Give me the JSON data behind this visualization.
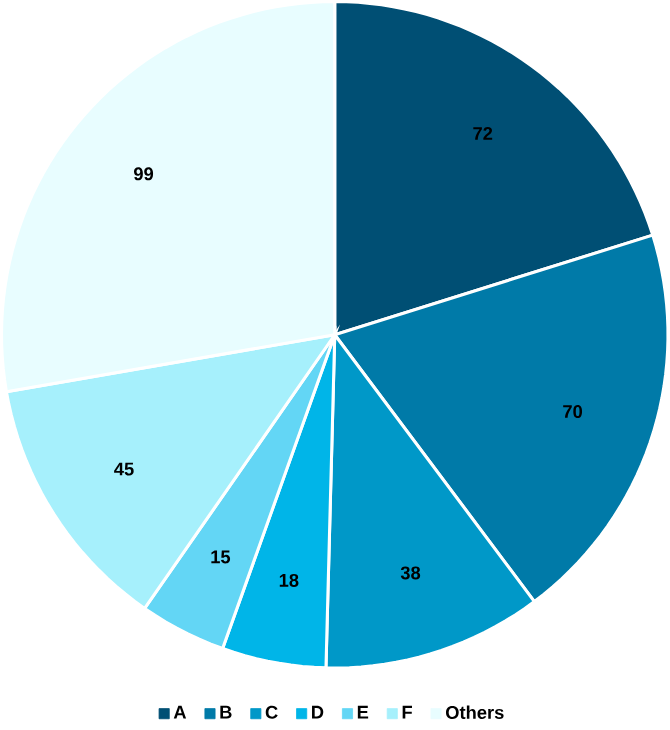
{
  "chart_data": {
    "type": "pie",
    "categories": [
      "A",
      "B",
      "C",
      "D",
      "E",
      "F",
      "Others"
    ],
    "values": [
      72,
      70,
      38,
      18,
      15,
      45,
      99
    ],
    "colors": [
      "#004f74",
      "#007aa8",
      "#0098c8",
      "#00b5e8",
      "#63d6f5",
      "#a6f0fc",
      "#e8fdff"
    ],
    "data_labels": true,
    "legend": "bottom"
  }
}
